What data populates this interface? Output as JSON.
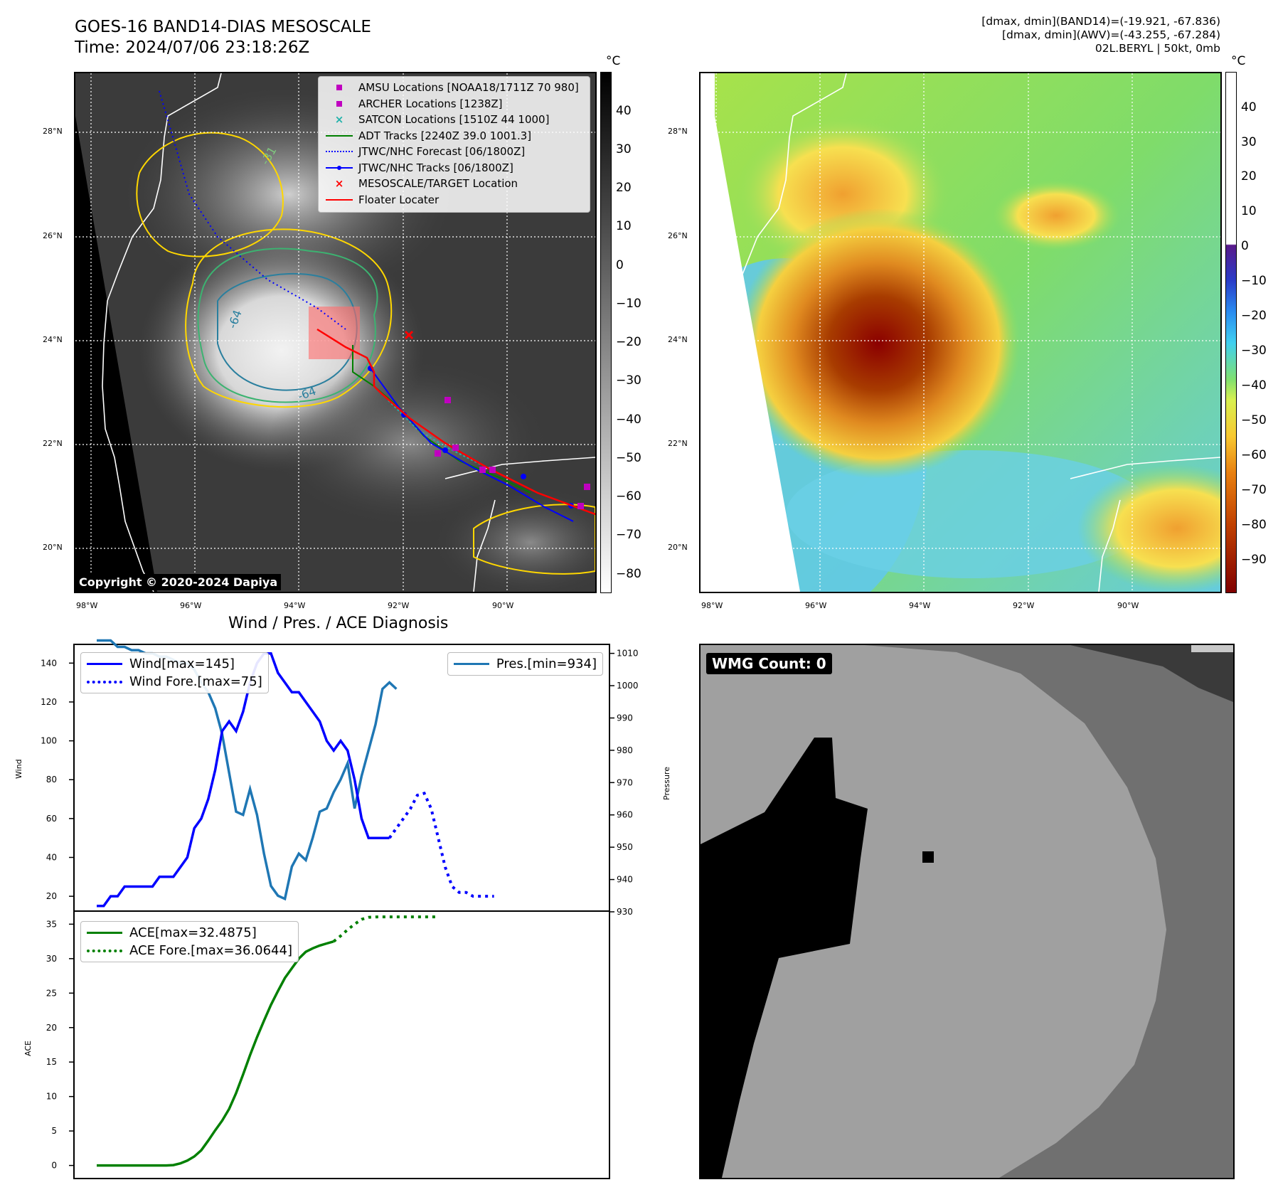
{
  "header": {
    "title_line1": "GOES-16 BAND14-DIAS MESOSCALE",
    "title_line2": "Time: 2024/07/06 23:18:26Z",
    "info_line1": "[dmax, dmin](BAND14)=(-19.921, -67.836)",
    "info_line2": "[dmax, dmin](AWV)=(-43.255, -67.284)",
    "info_line3": "02L.BERYL | 50kt, 0mb"
  },
  "map": {
    "lat_labels": [
      "28°N",
      "26°N",
      "24°N",
      "22°N",
      "20°N"
    ],
    "lon_labels": [
      "98°W",
      "96°W",
      "94°W",
      "92°W",
      "90°W"
    ],
    "contour_labels": [
      "-31",
      "-64",
      "-64"
    ],
    "copyright": "Copyright © 2020-2024 Dapiya"
  },
  "ir_legend": [
    {
      "label": "AMSU Locations [NOAA18/1711Z 70 980]",
      "marker": "square",
      "color": "#c000c0"
    },
    {
      "label": "ARCHER Locations [1238Z]",
      "marker": "square",
      "color": "#c000c0"
    },
    {
      "label": "SATCON Locations [1510Z 44 1000]",
      "marker": "x",
      "color": "#20b2aa"
    },
    {
      "label": "ADT Tracks [2240Z 39.0 1001.3]",
      "marker": "line",
      "color": "#008000"
    },
    {
      "label": "JTWC/NHC Forecast [06/1800Z]",
      "marker": "dotted",
      "color": "#0000ff"
    },
    {
      "label": "JTWC/NHC Tracks [06/1800Z]",
      "marker": "line-dot",
      "color": "#0000ff"
    },
    {
      "label": "MESOSCALE/TARGET Location",
      "marker": "x",
      "color": "#ff0000"
    },
    {
      "label": "Floater Locater",
      "marker": "line",
      "color": "#ff0000"
    }
  ],
  "colorbars": {
    "unit": "°C",
    "ir_ticks": [
      "40",
      "30",
      "20",
      "10",
      "0",
      "−10",
      "−20",
      "−30",
      "−40",
      "−50",
      "−60",
      "−70",
      "−80"
    ],
    "awv_ticks": [
      "40",
      "30",
      "20",
      "10",
      "0",
      "−10",
      "−20",
      "−30",
      "−40",
      "−50",
      "−60",
      "−70",
      "−80",
      "−90"
    ]
  },
  "diagnosis": {
    "title": "Wind / Pres. / ACE Diagnosis",
    "wind_ylabel": "Wind",
    "pres_ylabel": "Pressure",
    "ace_ylabel": "ACE",
    "wind_ticks": [
      "140",
      "120",
      "100",
      "80",
      "60",
      "40",
      "20"
    ],
    "pres_ticks": [
      "1010",
      "1000",
      "990",
      "980",
      "970",
      "960",
      "950",
      "940",
      "930"
    ],
    "ace_ticks": [
      "35",
      "30",
      "25",
      "20",
      "15",
      "10",
      "5",
      "0"
    ],
    "legend_wind": "Wind[max=145]",
    "legend_wind_fore": "Wind Fore.[max=75]",
    "legend_pres": "Pres.[min=934]",
    "legend_ace": "ACE[max=32.4875]",
    "legend_ace_fore": "ACE Fore.[max=36.0644]",
    "wmg_count": "WMG Count: 0",
    "colors": {
      "wind": "#0000ff",
      "pres": "#1f77b4",
      "ace": "#008000"
    }
  },
  "chart_data": [
    {
      "type": "line",
      "title": "Wind / Pres. / ACE Diagnosis",
      "ylabel": "Wind",
      "ylim": [
        12,
        150
      ],
      "series": [
        {
          "name": "Wind[max=145]",
          "values": [
            15,
            15,
            20,
            20,
            25,
            25,
            25,
            25,
            25,
            30,
            30,
            30,
            35,
            40,
            55,
            60,
            70,
            85,
            105,
            110,
            105,
            115,
            130,
            140,
            145,
            145,
            135,
            130,
            125,
            125,
            120,
            115,
            110,
            100,
            95,
            100,
            95,
            80,
            60,
            50,
            50,
            50,
            50
          ]
        },
        {
          "name": "Wind Fore.[max=75]",
          "values": [
            50,
            55,
            60,
            65,
            72,
            73,
            65,
            50,
            35,
            25,
            22,
            22,
            20,
            20,
            20,
            20
          ]
        }
      ],
      "secondary_axis": {
        "ylabel": "Pressure",
        "ylim": [
          930,
          1013
        ],
        "series": [
          {
            "name": "Pres.[min=934]",
            "values": [
              1014,
              1014,
              1014,
              1012,
              1012,
              1011,
              1011,
              1010,
              1010,
              1009,
              1009,
              1008,
              1007,
              1007,
              1005,
              1001,
              998,
              993,
              985,
              973,
              961,
              960,
              968,
              960,
              948,
              938,
              935,
              934,
              944,
              948,
              946,
              953,
              961,
              962,
              967,
              971,
              976,
              962,
              972,
              980,
              988,
              999,
              1001,
              999
            ]
          }
        ]
      }
    },
    {
      "type": "line",
      "ylabel": "ACE",
      "ylim": [
        -2,
        37
      ],
      "series": [
        {
          "name": "ACE[max=32.4875]",
          "values": [
            0,
            0,
            0,
            0,
            0,
            0,
            0,
            0,
            0,
            0,
            0,
            0.05,
            0.3,
            0.7,
            1.3,
            2.2,
            3.6,
            5.1,
            6.5,
            8.2,
            10.5,
            13.2,
            16,
            18.6,
            21,
            23.3,
            25.3,
            27.2,
            28.6,
            30,
            31,
            31.5,
            31.9,
            32.2,
            32.4875
          ]
        },
        {
          "name": "ACE Fore.[max=36.0644]",
          "values": [
            32.4875,
            33.3,
            34.2,
            35.0,
            35.7,
            36.0,
            36.05,
            36.0644,
            36.0644,
            36.0644,
            36.0644,
            36.0644,
            36.0644,
            36.0644,
            36.0644,
            36.0644
          ]
        }
      ]
    }
  ]
}
